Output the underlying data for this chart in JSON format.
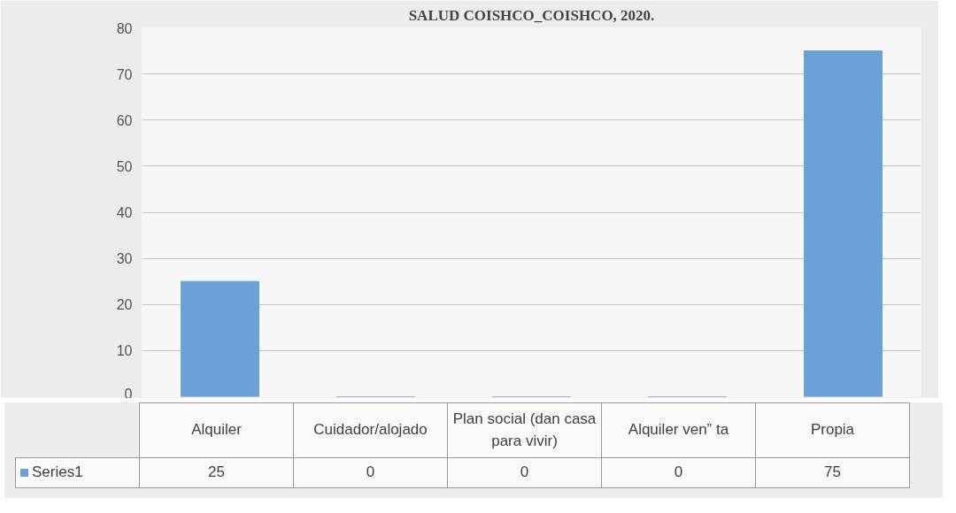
{
  "chart_data": {
    "type": "bar",
    "title": "SALUD COISHCO_COISHCO, 2020.",
    "categories": [
      "Alquiler",
      "Cuidador/alojado",
      "Plan social (dan casa para vivir)",
      "Alquiler ven” ta",
      "Propia"
    ],
    "series": [
      {
        "name": "Series1",
        "color": "#6aa2d8",
        "values": [
          25,
          0,
          0,
          0,
          75
        ]
      }
    ],
    "ylim": [
      0,
      80
    ],
    "yticks": [
      0,
      10,
      20,
      30,
      40,
      50,
      60,
      70,
      80
    ],
    "grid": "y",
    "data_labels": true
  }
}
